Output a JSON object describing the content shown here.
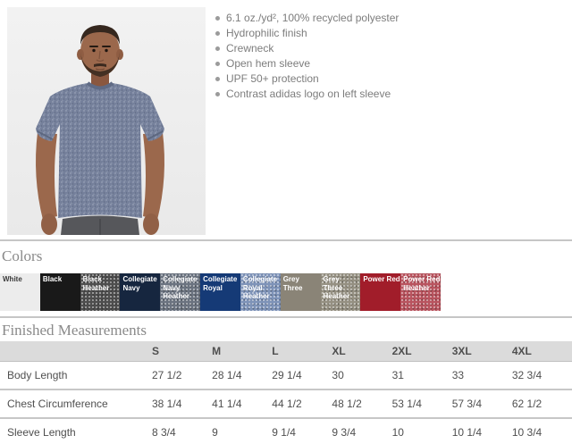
{
  "product": {
    "features": [
      "6.1 oz./yd², 100% recycled polyester",
      "Hydrophilic finish",
      "Crewneck",
      "Open hem sleeve",
      "UPF 50+ protection",
      "Contrast adidas logo on left sleeve"
    ],
    "photo_alt": "Model wearing heather navy crewneck t-shirt",
    "shirt_color_hex": "#75809b"
  },
  "colors_section": {
    "title": "Colors",
    "swatches": [
      {
        "name": "White",
        "bg": "#ececec",
        "text_color": "#3a3a3a",
        "heather": false
      },
      {
        "name": "Black",
        "bg": "#191919",
        "text_color": "#ffffff",
        "heather": false
      },
      {
        "name": "Black Heather",
        "bg": "#4e4e4e",
        "text_color": "#ffffff",
        "heather": true
      },
      {
        "name": "Collegiate Navy",
        "bg": "#16263f",
        "text_color": "#ffffff",
        "heather": false
      },
      {
        "name": "Collegiate Navy Heather",
        "bg": "#6b7380",
        "text_color": "#ffffff",
        "heather": true
      },
      {
        "name": "Collegiate Royal",
        "bg": "#153a76",
        "text_color": "#ffffff",
        "heather": false
      },
      {
        "name": "Collegiate Royal Heather",
        "bg": "#7e93b8",
        "text_color": "#ffffff",
        "heather": true
      },
      {
        "name": "Grey Three",
        "bg": "#8a8477",
        "text_color": "#ffffff",
        "heather": false
      },
      {
        "name": "Grey Three Heather",
        "bg": "#959082",
        "text_color": "#ffffff",
        "heather": true
      },
      {
        "name": "Power Red",
        "bg": "#a11d2a",
        "text_color": "#ffffff",
        "heather": false
      },
      {
        "name": "Power Red Heather",
        "bg": "#b9545f",
        "text_color": "#ffffff",
        "heather": true
      }
    ]
  },
  "measurements": {
    "title": "Finished Measurements",
    "columns": [
      "S",
      "M",
      "L",
      "XL",
      "2XL",
      "3XL",
      "4XL"
    ],
    "rows": [
      {
        "label": "Body Length",
        "values": [
          "27 1/2",
          "28 1/4",
          "29 1/4",
          "30",
          "31",
          "33",
          "32 3/4"
        ]
      },
      {
        "label": "Chest Circumference",
        "values": [
          "38 1/4",
          "41 1/4",
          "44 1/2",
          "48 1/2",
          "53 1/4",
          "57 3/4",
          "62 1/2"
        ]
      },
      {
        "label": "Sleeve Length",
        "values": [
          "8 3/4",
          "9",
          "9 1/4",
          "9 3/4",
          "10",
          "10 1/4",
          "10 3/4"
        ]
      }
    ]
  }
}
